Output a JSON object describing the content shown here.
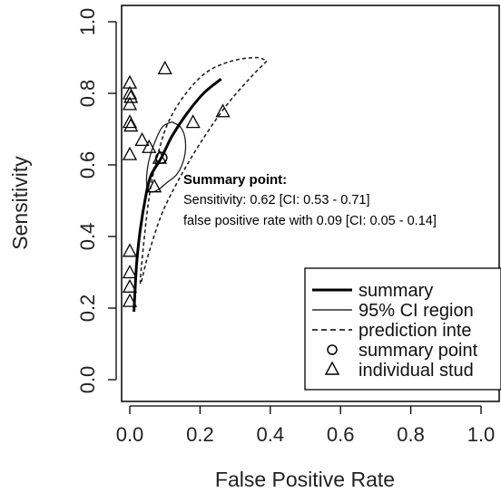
{
  "chart_data": {
    "type": "scatter",
    "xlabel": "False Positive Rate",
    "ylabel": "Sensitivity",
    "xlim": [
      0,
      1
    ],
    "ylim": [
      0,
      1
    ],
    "x_ticks": [
      "0.0",
      "0.2",
      "0.4",
      "0.6",
      "0.8",
      "1.0"
    ],
    "y_ticks": [
      "0.0",
      "0.2",
      "0.4",
      "0.6",
      "0.8",
      "1.0"
    ],
    "grid": false,
    "legend_position": "bottom-right",
    "legend": [
      {
        "label": "summary",
        "style": "thick-line"
      },
      {
        "label": "95% CI region",
        "style": "thin-line"
      },
      {
        "label": "prediction inte",
        "style": "dashed-line"
      },
      {
        "label": "summary point",
        "style": "circle"
      },
      {
        "label": "individual stud",
        "style": "triangle"
      }
    ],
    "annotation": {
      "heading": "Summary point:",
      "line1": "Sensitivity: 0.62 [CI: 0.53 - 0.71]",
      "line2": "false positive rate with 0.09 [CI: 0.05 - 0.14]"
    },
    "summary_point": {
      "x": 0.09,
      "y": 0.62
    },
    "summary_curve": [
      [
        0.012,
        0.19
      ],
      [
        0.015,
        0.25
      ],
      [
        0.02,
        0.33
      ],
      [
        0.03,
        0.42
      ],
      [
        0.045,
        0.51
      ],
      [
        0.06,
        0.57
      ],
      [
        0.09,
        0.62
      ],
      [
        0.12,
        0.68
      ],
      [
        0.16,
        0.74
      ],
      [
        0.21,
        0.8
      ],
      [
        0.26,
        0.84
      ]
    ],
    "ci_region": [
      [
        0.12,
        0.72
      ],
      [
        0.145,
        0.705
      ],
      [
        0.158,
        0.67
      ],
      [
        0.155,
        0.62
      ],
      [
        0.135,
        0.575
      ],
      [
        0.105,
        0.55
      ],
      [
        0.08,
        0.53
      ],
      [
        0.058,
        0.525
      ],
      [
        0.048,
        0.545
      ],
      [
        0.052,
        0.6
      ],
      [
        0.068,
        0.655
      ],
      [
        0.092,
        0.705
      ],
      [
        0.12,
        0.72
      ]
    ],
    "prediction_region": [
      [
        0.39,
        0.89
      ],
      [
        0.34,
        0.84
      ],
      [
        0.27,
        0.76
      ],
      [
        0.2,
        0.66
      ],
      [
        0.14,
        0.56
      ],
      [
        0.09,
        0.46
      ],
      [
        0.05,
        0.34
      ],
      [
        0.03,
        0.27
      ],
      [
        0.045,
        0.43
      ],
      [
        0.06,
        0.54
      ],
      [
        0.08,
        0.63
      ],
      [
        0.11,
        0.72
      ],
      [
        0.16,
        0.8
      ],
      [
        0.22,
        0.86
      ],
      [
        0.29,
        0.89
      ],
      [
        0.36,
        0.9
      ],
      [
        0.39,
        0.89
      ]
    ],
    "studies": [
      {
        "x": 0.0,
        "y": 0.83
      },
      {
        "x": 0.0,
        "y": 0.8
      },
      {
        "x": 0.003,
        "y": 0.79
      },
      {
        "x": 0.0,
        "y": 0.77
      },
      {
        "x": 0.0,
        "y": 0.72
      },
      {
        "x": 0.003,
        "y": 0.71
      },
      {
        "x": 0.0,
        "y": 0.63
      },
      {
        "x": 0.0,
        "y": 0.36
      },
      {
        "x": 0.0,
        "y": 0.3
      },
      {
        "x": 0.0,
        "y": 0.26
      },
      {
        "x": 0.0,
        "y": 0.22
      },
      {
        "x": 0.1,
        "y": 0.87
      },
      {
        "x": 0.035,
        "y": 0.67
      },
      {
        "x": 0.055,
        "y": 0.65
      },
      {
        "x": 0.085,
        "y": 0.62
      },
      {
        "x": 0.07,
        "y": 0.54
      },
      {
        "x": 0.18,
        "y": 0.72
      },
      {
        "x": 0.265,
        "y": 0.75
      }
    ]
  }
}
